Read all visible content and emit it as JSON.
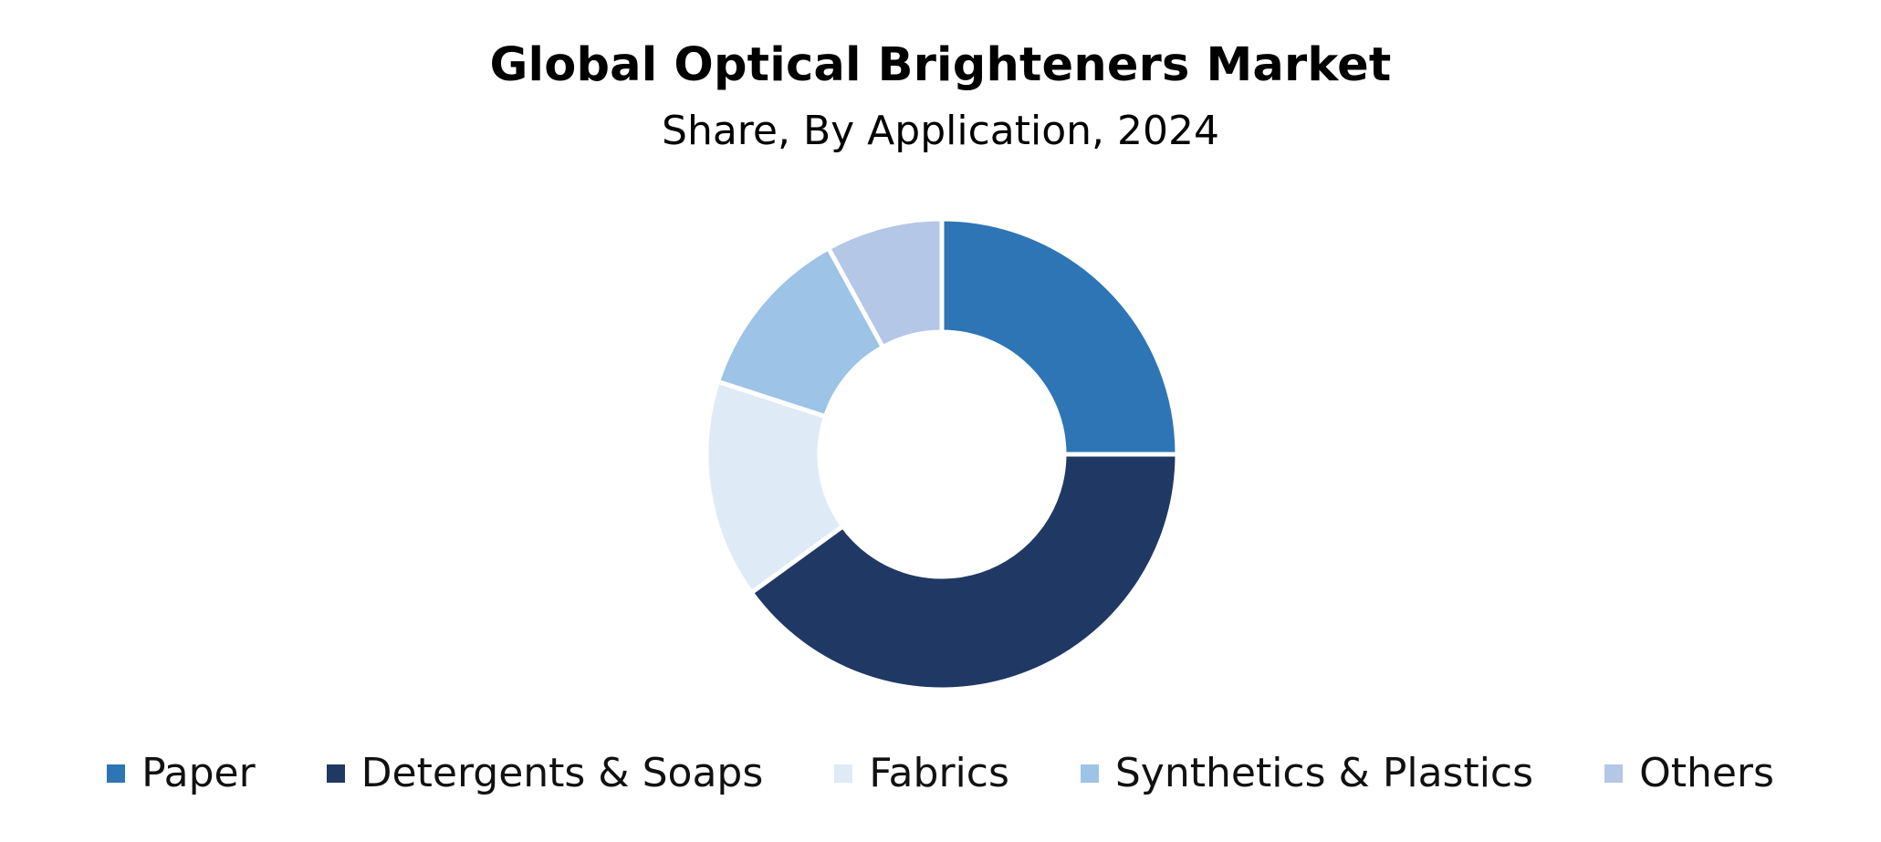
{
  "chart_data": {
    "type": "pie",
    "variant": "donut",
    "title": "Global Optical Brighteners Market",
    "subtitle": "Share, By Application, 2024",
    "categories": [
      "Paper",
      "Detergents & Soaps",
      "Fabrics",
      "Synthetics & Plastics",
      "Others"
    ],
    "values": [
      25,
      40,
      15,
      12,
      8
    ],
    "unit": "%",
    "colors": [
      "#2E75B6",
      "#203864",
      "#DEEBF7",
      "#9DC3E6",
      "#B4C7E7"
    ],
    "legend_position": "bottom",
    "start_angle": "12 o'clock",
    "direction": "clockwise"
  }
}
